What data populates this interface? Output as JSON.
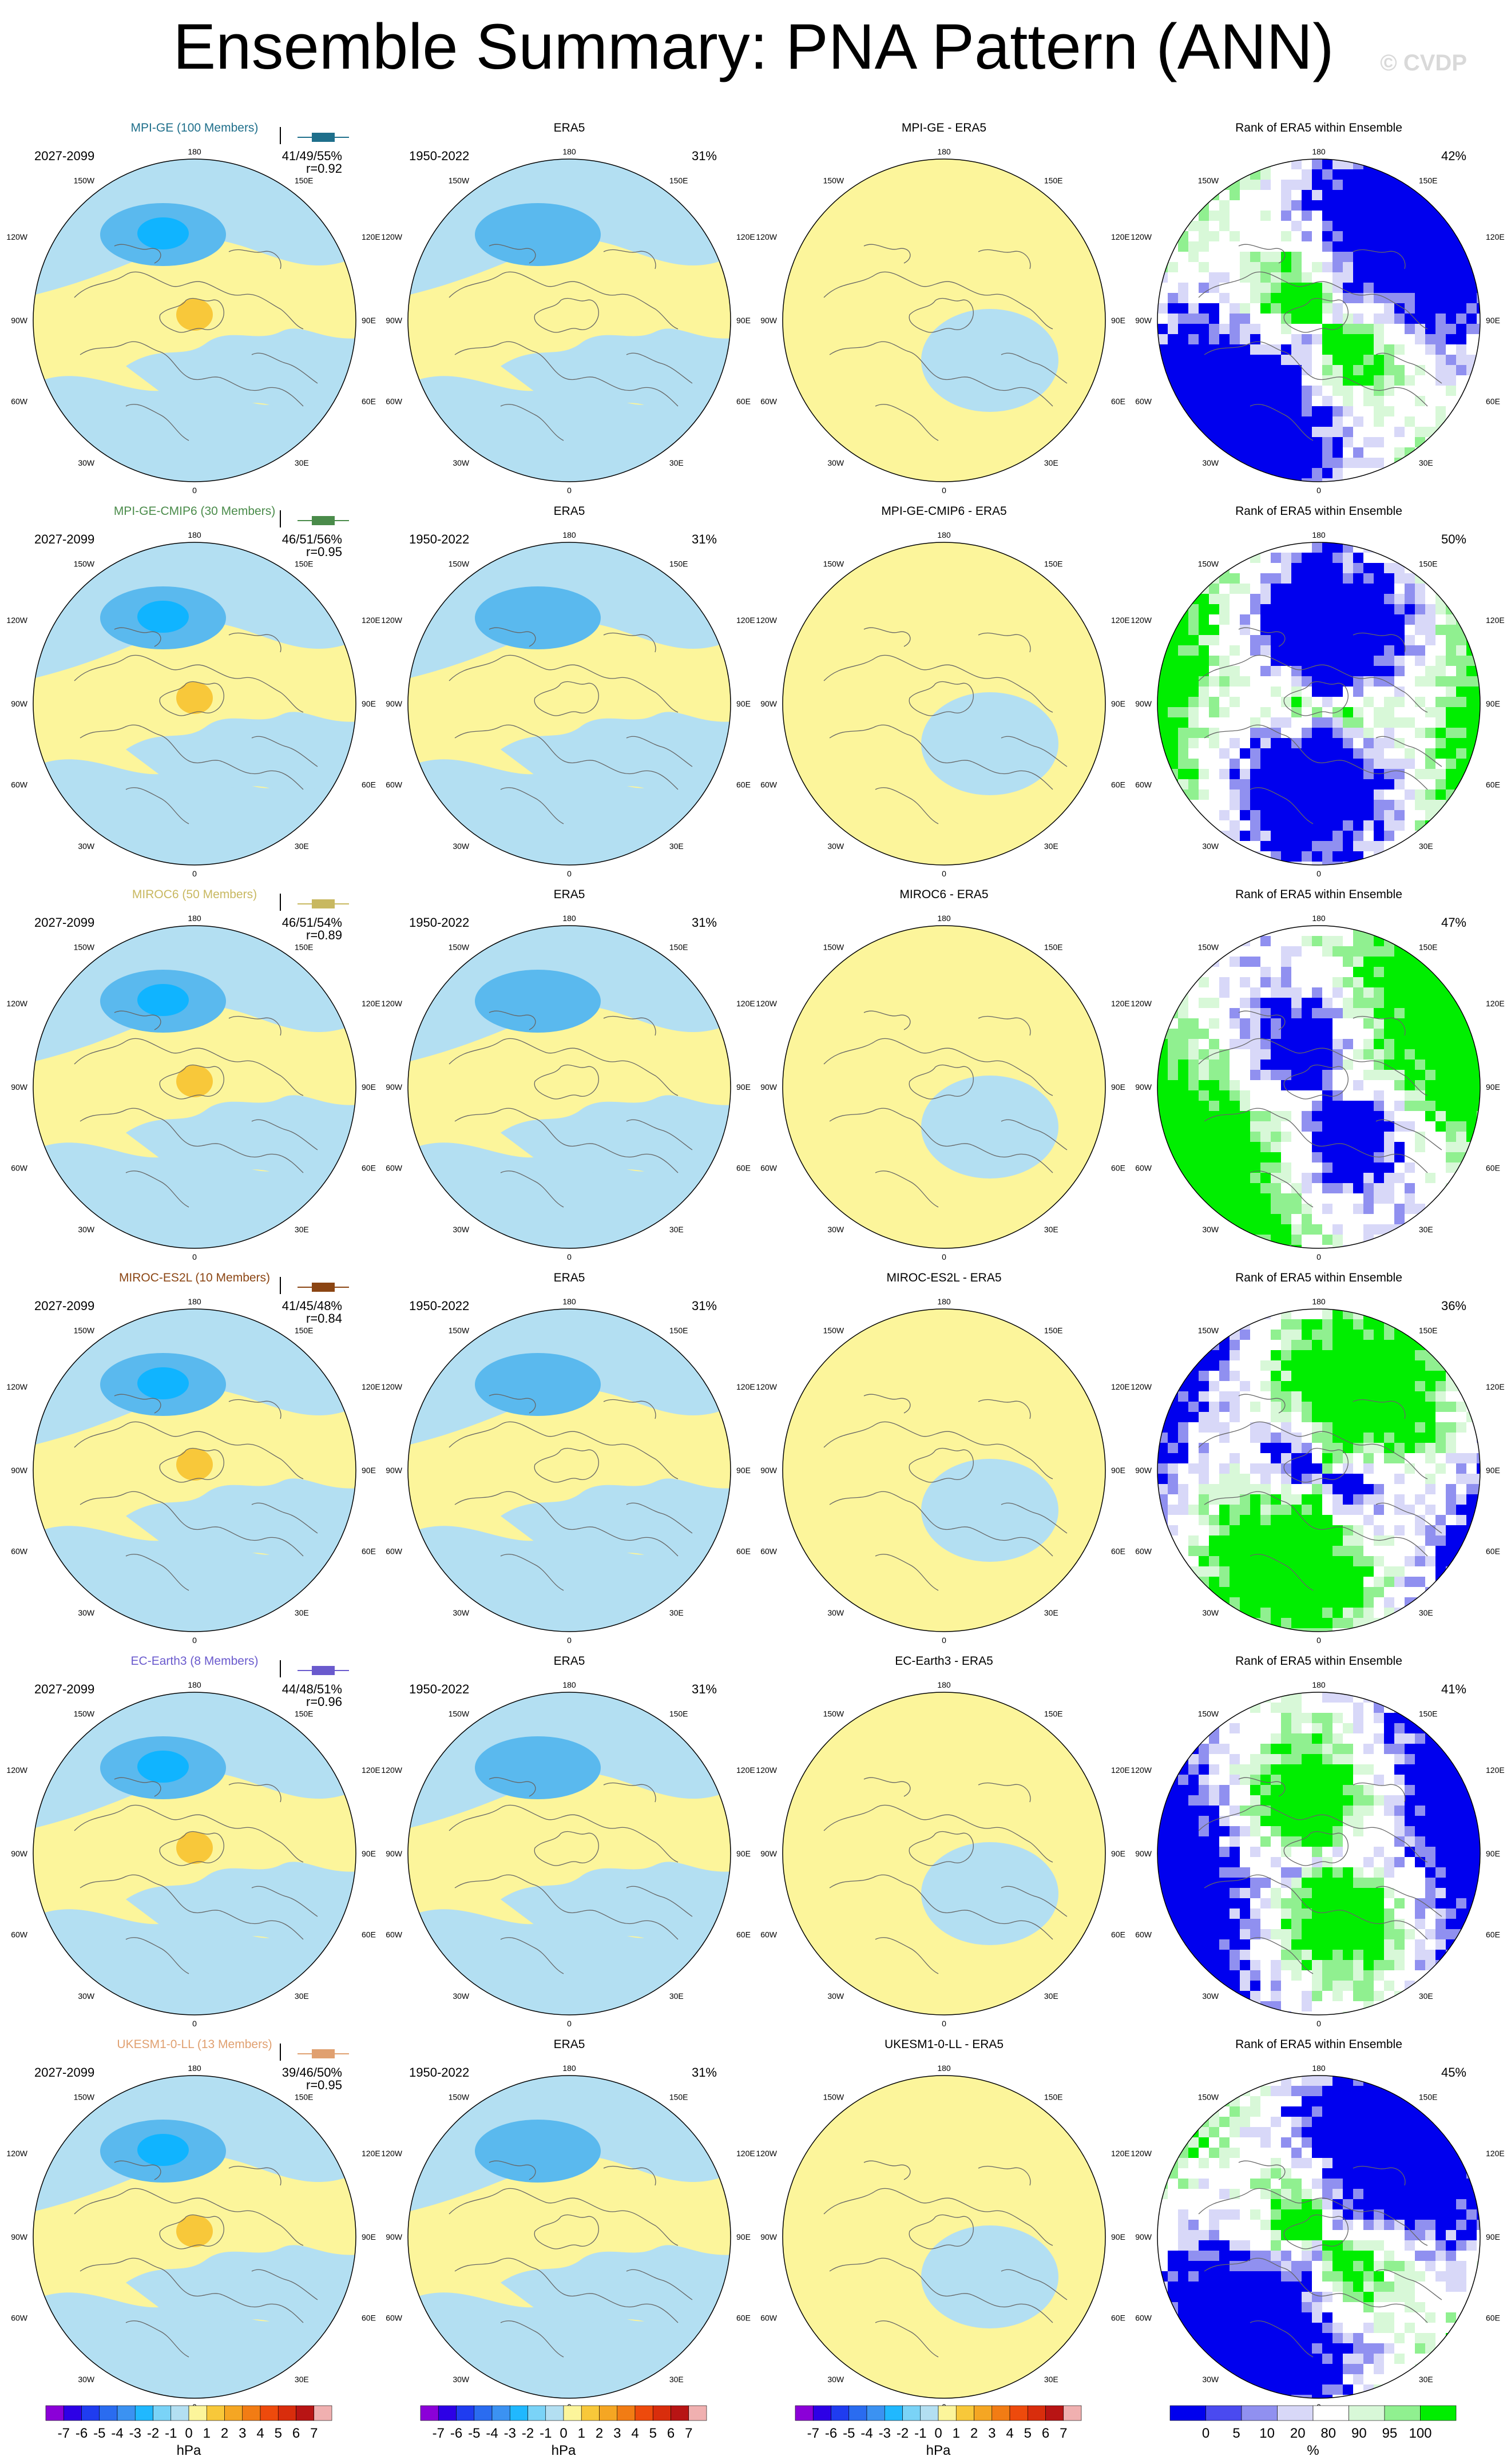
{
  "title": "Ensemble Summary: PNA Pattern (ANN)",
  "watermark": "© CVDP",
  "colors": {
    "positive": "#fcf59b",
    "negative": "#b3dff2",
    "strong_positive": "#f8c83a",
    "strong_negative": "#5ab9ee",
    "core_negative": "#10b4ff",
    "rank_low": "#0000ee",
    "rank_high": "#00ee00",
    "land_outline": "#666666"
  },
  "chart_data": {
    "type": "heatmap",
    "projection": "north-polar-stereographic",
    "lon_labels": [
      "180",
      "150W",
      "150E",
      "120W",
      "120E",
      "90W",
      "90E",
      "60W",
      "60E",
      "30W",
      "30E",
      "0"
    ],
    "column_titles": [
      "ERA5",
      "Rank of ERA5 within Ensemble"
    ],
    "colorbars": {
      "pattern": {
        "ticks": [
          "-7",
          "-6",
          "-5",
          "-4",
          "-3",
          "-2",
          "-1",
          "0",
          "1",
          "2",
          "3",
          "4",
          "5",
          "6",
          "7"
        ],
        "colors": [
          "#8b00d8",
          "#2d00e6",
          "#1f3cf0",
          "#2a6cf0",
          "#3b92f2",
          "#20b8ff",
          "#7ad3f7",
          "#b3dff2",
          "#fcf59b",
          "#f8c83a",
          "#f5a623",
          "#f27c14",
          "#ee4a0c",
          "#d92d0c",
          "#b81414",
          "#f0b0b0"
        ],
        "units": "hPa"
      },
      "rank": {
        "ticks": [
          "0",
          "5",
          "10",
          "20",
          "80",
          "90",
          "95",
          "100"
        ],
        "colors": [
          "#0000ee",
          "#4a4af0",
          "#9090f0",
          "#d8d8f8",
          "#ffffff",
          "#d8f8d8",
          "#90f090",
          "#00ee00"
        ],
        "units": "%"
      }
    },
    "rows": [
      {
        "model": "MPI-GE (100 Members)",
        "model_color": "#1f6f8b",
        "period": "2027-2099",
        "era_period": "1950-2022",
        "stats": "41/49/55%",
        "r": "r=0.92",
        "diff_title": "MPI-GE - ERA5",
        "era_pct": "31%",
        "rank_pct": "42%"
      },
      {
        "model": "MPI-GE-CMIP6 (30 Members)",
        "model_color": "#4a8b4a",
        "period": "2027-2099",
        "era_period": "1950-2022",
        "stats": "46/51/56%",
        "r": "r=0.95",
        "diff_title": "MPI-GE-CMIP6 - ERA5",
        "era_pct": "31%",
        "rank_pct": "50%"
      },
      {
        "model": "MIROC6 (50 Members)",
        "model_color": "#c8b860",
        "period": "2027-2099",
        "era_period": "1950-2022",
        "stats": "46/51/54%",
        "r": "r=0.89",
        "diff_title": "MIROC6 - ERA5",
        "era_pct": "31%",
        "rank_pct": "47%"
      },
      {
        "model": "MIROC-ES2L (10 Members)",
        "model_color": "#8b4513",
        "period": "2027-2099",
        "era_period": "1950-2022",
        "stats": "41/45/48%",
        "r": "r=0.84",
        "diff_title": "MIROC-ES2L - ERA5",
        "era_pct": "31%",
        "rank_pct": "36%"
      },
      {
        "model": "EC-Earth3 (8 Members)",
        "model_color": "#6a5acd",
        "period": "2027-2099",
        "era_period": "1950-2022",
        "stats": "44/48/51%",
        "r": "r=0.96",
        "diff_title": "EC-Earth3 - ERA5",
        "era_pct": "31%",
        "rank_pct": "41%"
      },
      {
        "model": "UKESM1-0-LL (13 Members)",
        "model_color": "#e0a070",
        "period": "2027-2099",
        "era_period": "1950-2022",
        "stats": "39/46/50%",
        "r": "r=0.95",
        "diff_title": "UKESM1-0-LL - ERA5",
        "era_pct": "31%",
        "rank_pct": "45%"
      }
    ]
  }
}
